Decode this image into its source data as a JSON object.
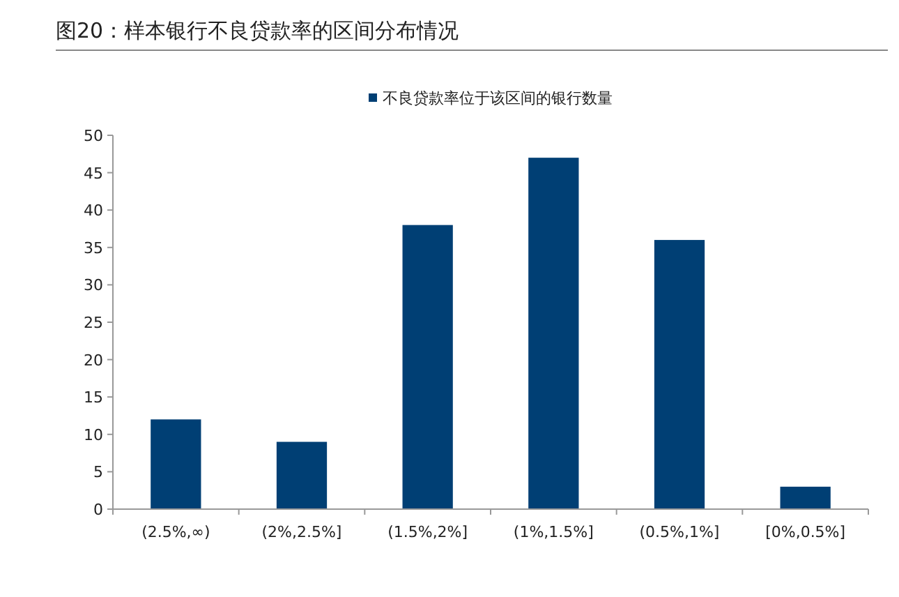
{
  "chart_data": {
    "type": "bar",
    "title": "图20：样本银行不良贷款率的区间分布情况",
    "categories": [
      "(2.5%,∞)",
      "(2%,2.5%]",
      "(1.5%,2%]",
      "(1%,1.5%]",
      "(0.5%,1%]",
      "[0%,0.5%]"
    ],
    "series": [
      {
        "name": "不良贷款率位于该区间的银行数量",
        "color": "#003f74",
        "values": [
          12,
          9,
          38,
          47,
          36,
          3
        ]
      }
    ],
    "ylim": [
      0,
      50
    ],
    "yticks": [
      0,
      5,
      10,
      15,
      20,
      25,
      30,
      35,
      40,
      45,
      50
    ],
    "legend": "top",
    "grid": false
  }
}
